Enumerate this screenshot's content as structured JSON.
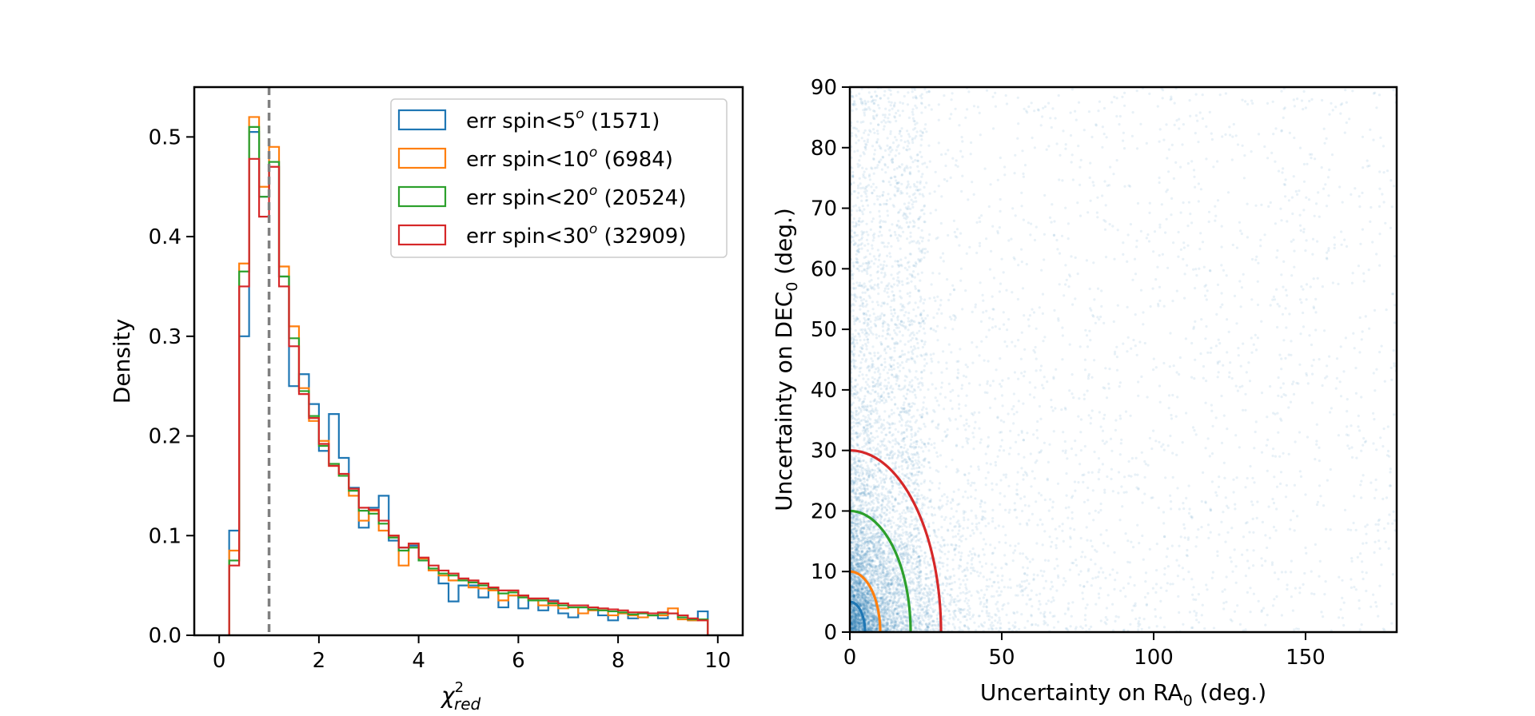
{
  "chart_data": [
    {
      "type": "histogram",
      "title": "",
      "xlabel_main": "χ",
      "xlabel_sup": "2",
      "xlabel_sub": "red",
      "ylabel": "Density",
      "xlim": [
        -0.5,
        10.5
      ],
      "ylim": [
        0,
        0.55
      ],
      "x_ticks": [
        0,
        2,
        4,
        6,
        8,
        10
      ],
      "x_tick_labels": [
        "0",
        "2",
        "4",
        "6",
        "8",
        "10"
      ],
      "y_ticks": [
        0.0,
        0.1,
        0.2,
        0.3,
        0.4,
        0.5
      ],
      "y_tick_labels": [
        "0.0",
        "0.1",
        "0.2",
        "0.3",
        "0.4",
        "0.5"
      ],
      "grid": false,
      "legend_position": "top-right",
      "reference_line": {
        "x": 1.0,
        "style": "dashed",
        "color": "#808080"
      },
      "bin_edges": [
        0.2,
        0.4,
        0.6,
        0.8,
        1.0,
        1.2,
        1.4,
        1.6,
        1.8,
        2.0,
        2.2,
        2.4,
        2.6,
        2.8,
        3.0,
        3.2,
        3.4,
        3.6,
        3.8,
        4.0,
        4.2,
        4.4,
        4.6,
        4.8,
        5.0,
        5.2,
        5.4,
        5.6,
        5.8,
        6.0,
        6.2,
        6.4,
        6.6,
        6.8,
        7.0,
        7.2,
        7.4,
        7.6,
        7.8,
        8.0,
        8.2,
        8.4,
        8.6,
        8.8,
        9.0,
        9.2,
        9.4,
        9.6,
        9.8,
        10.0
      ],
      "series": [
        {
          "label_prefix": "err spin<5",
          "label_sup": "o",
          "label_suffix": " (1571)",
          "color": "#1f77b4",
          "values": [
            0.105,
            0.3,
            0.505,
            0.44,
            0.475,
            0.36,
            0.25,
            0.262,
            0.232,
            0.185,
            0.222,
            0.178,
            0.148,
            0.108,
            0.128,
            0.14,
            0.095,
            0.088,
            0.09,
            0.075,
            0.065,
            0.052,
            0.034,
            0.05,
            0.05,
            0.038,
            0.045,
            0.028,
            0.04,
            0.027,
            0.035,
            0.025,
            0.035,
            0.022,
            0.018,
            0.028,
            0.025,
            0.02,
            0.015,
            0.022,
            0.017,
            0.022,
            0.02,
            0.017,
            0.022,
            0.018,
            0.015,
            0.024
          ]
        },
        {
          "label_prefix": "err spin<10",
          "label_sup": "o",
          "label_suffix": " (6984)",
          "color": "#ff7f0e",
          "values": [
            0.085,
            0.373,
            0.52,
            0.45,
            0.49,
            0.37,
            0.31,
            0.248,
            0.215,
            0.195,
            0.17,
            0.16,
            0.14,
            0.115,
            0.125,
            0.105,
            0.1,
            0.07,
            0.092,
            0.077,
            0.065,
            0.06,
            0.055,
            0.055,
            0.048,
            0.047,
            0.045,
            0.035,
            0.04,
            0.04,
            0.035,
            0.03,
            0.03,
            0.027,
            0.028,
            0.022,
            0.025,
            0.025,
            0.02,
            0.022,
            0.02,
            0.018,
            0.02,
            0.02,
            0.027,
            0.016,
            0.015,
            0.015
          ]
        },
        {
          "label_prefix": "err spin<20",
          "label_sup": "o",
          "label_suffix": " (20524)",
          "color": "#2ca02c",
          "values": [
            0.075,
            0.365,
            0.51,
            0.44,
            0.475,
            0.36,
            0.298,
            0.245,
            0.22,
            0.19,
            0.172,
            0.16,
            0.145,
            0.125,
            0.122,
            0.112,
            0.098,
            0.085,
            0.088,
            0.075,
            0.067,
            0.062,
            0.06,
            0.055,
            0.053,
            0.05,
            0.047,
            0.042,
            0.043,
            0.038,
            0.035,
            0.035,
            0.032,
            0.03,
            0.028,
            0.028,
            0.026,
            0.025,
            0.024,
            0.023,
            0.021,
            0.022,
            0.02,
            0.022,
            0.022,
            0.018,
            0.016,
            0.016
          ]
        },
        {
          "label_prefix": "err spin<30",
          "label_sup": "o",
          "label_suffix": " (32909)",
          "color": "#d62728",
          "values": [
            0.07,
            0.35,
            0.478,
            0.42,
            0.47,
            0.35,
            0.29,
            0.242,
            0.218,
            0.192,
            0.17,
            0.162,
            0.147,
            0.128,
            0.126,
            0.115,
            0.1,
            0.088,
            0.092,
            0.078,
            0.07,
            0.065,
            0.062,
            0.057,
            0.055,
            0.052,
            0.048,
            0.045,
            0.045,
            0.04,
            0.037,
            0.037,
            0.034,
            0.032,
            0.03,
            0.03,
            0.028,
            0.027,
            0.026,
            0.025,
            0.023,
            0.023,
            0.022,
            0.023,
            0.022,
            0.02,
            0.017,
            0.015
          ]
        }
      ]
    },
    {
      "type": "scatter",
      "title": "",
      "xlabel_prefix": "Uncertainty on RA",
      "xlabel_sub": "0",
      "xlabel_suffix": " (deg.)",
      "ylabel_prefix": "Uncertainty on DEC",
      "ylabel_sub": "0",
      "ylabel_suffix": " (deg.)",
      "xlim": [
        0,
        180
      ],
      "ylim": [
        0,
        90
      ],
      "x_ticks": [
        0,
        50,
        100,
        150
      ],
      "x_tick_labels": [
        "0",
        "50",
        "100",
        "150"
      ],
      "y_ticks": [
        0,
        10,
        20,
        30,
        40,
        50,
        60,
        70,
        80,
        90
      ],
      "y_tick_labels": [
        "0",
        "10",
        "20",
        "30",
        "40",
        "50",
        "60",
        "70",
        "80",
        "90"
      ],
      "grid": false,
      "point_color": "#1f77b4",
      "point_alpha": 0.1,
      "circles": [
        {
          "radius": 5,
          "color": "#1f77b4"
        },
        {
          "radius": 10,
          "color": "#ff7f0e"
        },
        {
          "radius": 20,
          "color": "#2ca02c"
        },
        {
          "radius": 30,
          "color": "#d62728"
        }
      ]
    }
  ]
}
